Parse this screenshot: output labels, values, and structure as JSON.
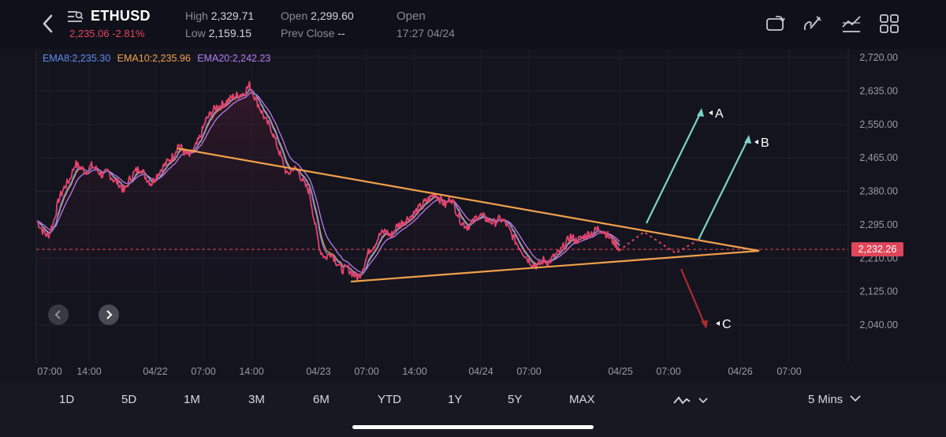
{
  "header": {
    "symbol": "ETHUSD",
    "last_price_change": "2,235.06 -2.81%",
    "high_label": "High",
    "high_value": "2,329.71",
    "low_label": "Low",
    "low_value": "2,159.15",
    "open_label": "Open",
    "open_value": "2,299.60",
    "prev_close_label": "Prev Close",
    "prev_close_value": "--",
    "market_status": "Open",
    "timestamp": "17:27 04/24",
    "icons": [
      "back-chevron-icon",
      "list-icon",
      "rotate-screen-icon",
      "draw-pen-icon",
      "indicator-icon",
      "layout-grid-icon"
    ]
  },
  "legend": {
    "ema8": "EMA8:2,235.30",
    "ema10": "EMA10:2,235.96",
    "ema20": "EMA20:2,242.23",
    "colors": {
      "ema8": "#5b8def",
      "ema10": "#f0a04b",
      "ema20": "#b67cf2"
    }
  },
  "chart_data": {
    "type": "line",
    "y_ticks": [
      "2,720.00",
      "2,635.00",
      "2,550.00",
      "2,465.00",
      "2,380.00",
      "2,295.00",
      "2,210.00",
      "2,125.00",
      "2,040.00"
    ],
    "ylim": [
      2040,
      2720
    ],
    "x_ticks": [
      "07:00",
      "14:00",
      "04/22",
      "07:00",
      "14:00",
      "04/23",
      "07:00",
      "14:00",
      "04/24",
      "07:00",
      "04/25",
      "07:00",
      "04/26",
      "07:00"
    ],
    "current_price_label": "2,232.26",
    "current_price": 2232.26,
    "annotations": [
      "A",
      "B",
      "C"
    ],
    "series": [
      {
        "name": "ETHUSD",
        "color": "#e8436a",
        "values": [
          2305,
          2280,
          2265,
          2300,
          2360,
          2390,
          2410,
          2450,
          2440,
          2430,
          2445,
          2435,
          2420,
          2430,
          2410,
          2400,
          2380,
          2410,
          2430,
          2440,
          2415,
          2400,
          2420,
          2440,
          2455,
          2470,
          2500,
          2480,
          2470,
          2490,
          2520,
          2560,
          2580,
          2595,
          2600,
          2610,
          2620,
          2625,
          2630,
          2650,
          2620,
          2590,
          2560,
          2540,
          2500,
          2460,
          2420,
          2440,
          2430,
          2400,
          2380,
          2300,
          2230,
          2210,
          2225,
          2200,
          2180,
          2185,
          2170,
          2160,
          2190,
          2230,
          2245,
          2270,
          2280,
          2265,
          2290,
          2300,
          2310,
          2320,
          2335,
          2350,
          2360,
          2375,
          2360,
          2345,
          2365,
          2330,
          2300,
          2290,
          2300,
          2320,
          2315,
          2305,
          2300,
          2310,
          2300,
          2275,
          2250,
          2230,
          2210,
          2195,
          2190,
          2205,
          2200,
          2215,
          2225,
          2245,
          2265,
          2255,
          2260,
          2270,
          2275,
          2285,
          2280,
          2265,
          2250,
          2235
        ]
      },
      {
        "name": "EMA8",
        "color": "#5b8def"
      },
      {
        "name": "EMA10",
        "color": "#f0a04b"
      },
      {
        "name": "EMA20",
        "color": "#b67cf2"
      }
    ]
  },
  "ranges": [
    "1D",
    "5D",
    "1M",
    "3M",
    "6M",
    "YTD",
    "1Y",
    "5Y",
    "MAX"
  ],
  "interval": "5 Mins"
}
